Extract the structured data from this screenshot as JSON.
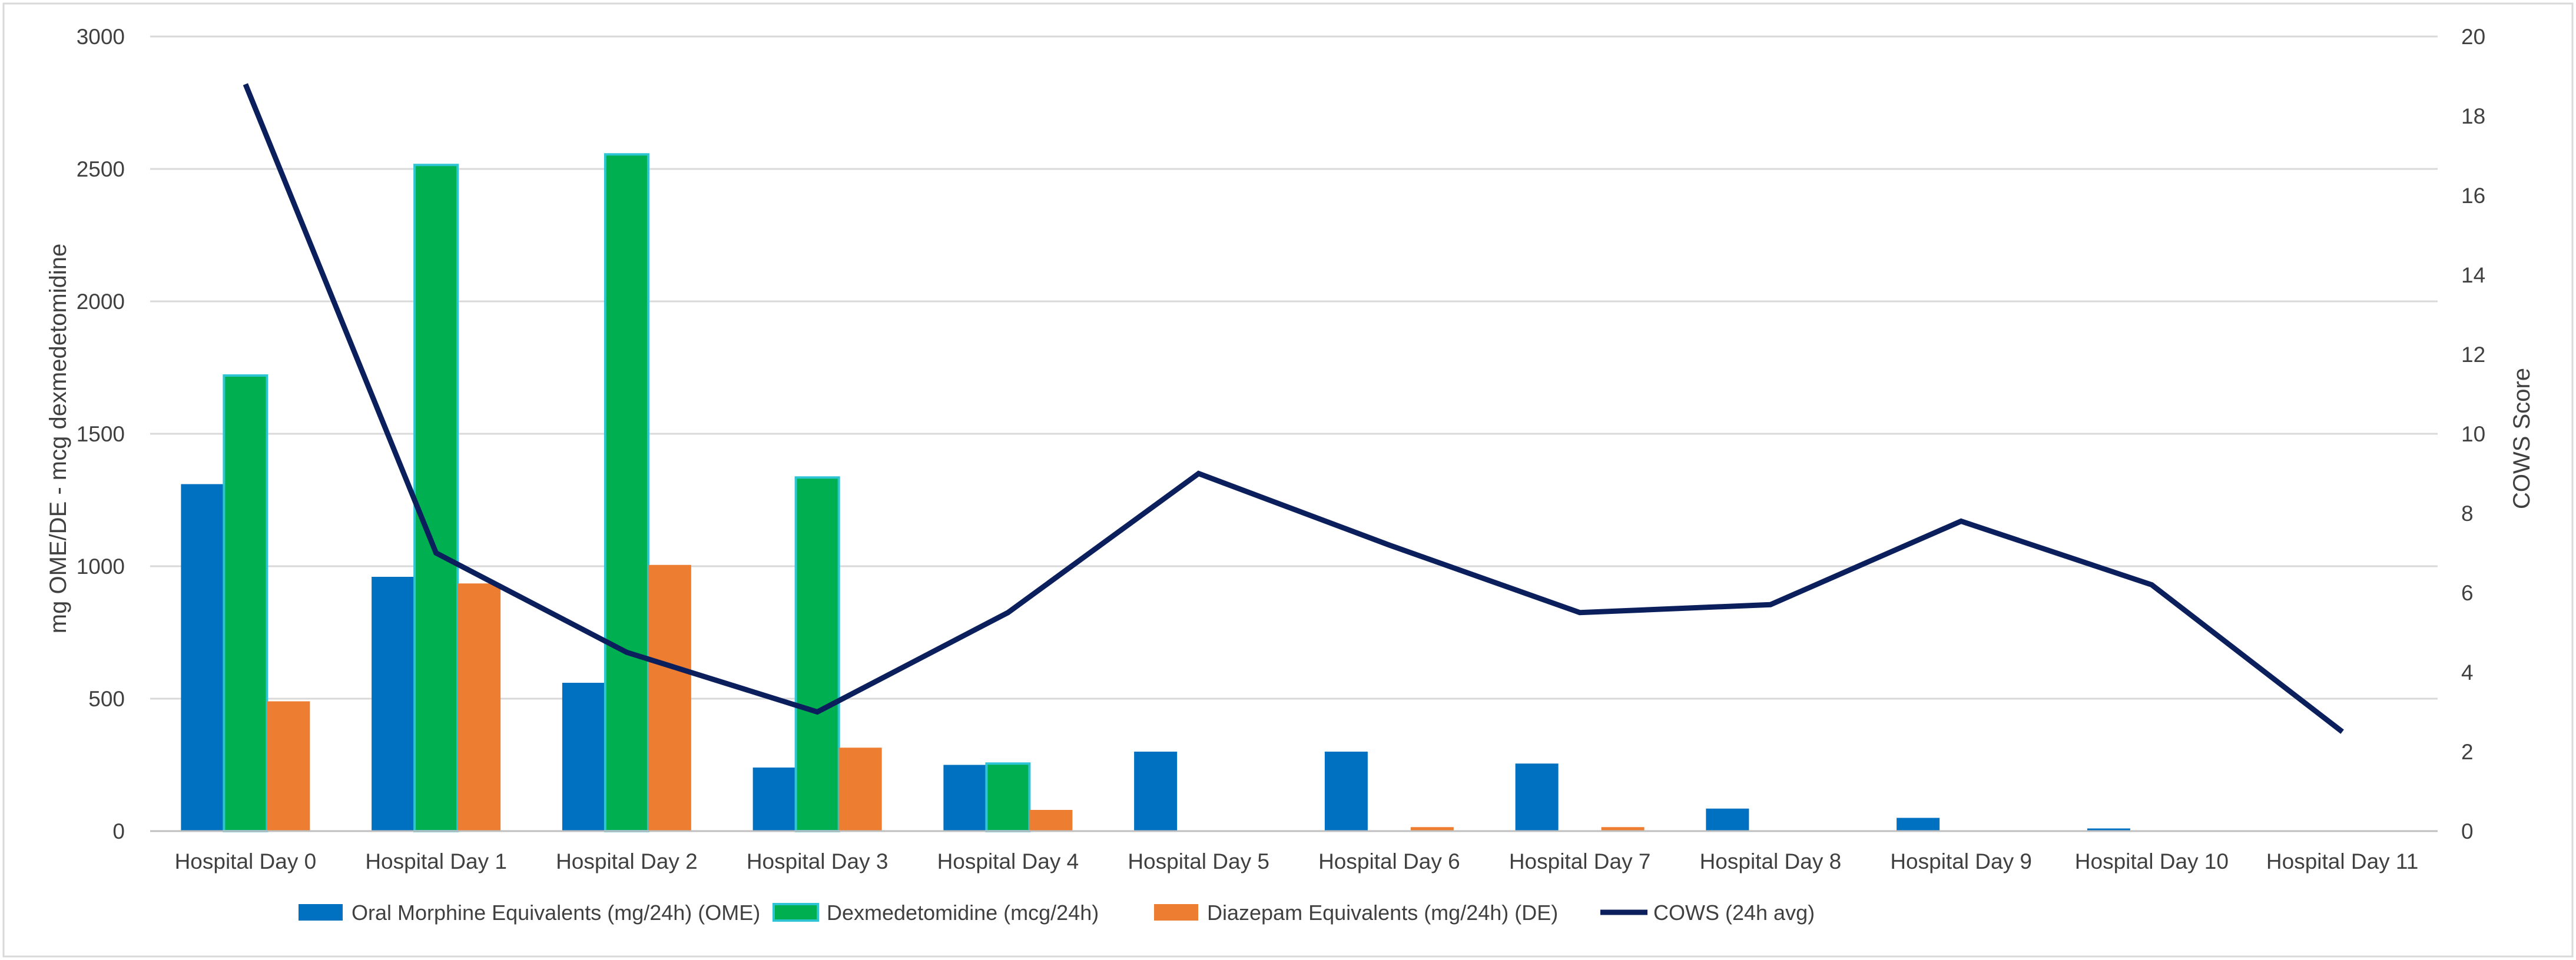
{
  "chart_data": {
    "type": "bar",
    "categories": [
      "Hospital Day 0",
      "Hospital Day 1",
      "Hospital Day 2",
      "Hospital Day 3",
      "Hospital Day 4",
      "Hospital Day 5",
      "Hospital Day 6",
      "Hospital Day 7",
      "Hospital Day 8",
      "Hospital Day 9",
      "Hospital Day 10",
      "Hospital Day 11"
    ],
    "series": [
      {
        "name": "Oral Morphine Equivalents (mg/24h) (OME)",
        "type": "bar",
        "axis": "left",
        "color": "#0070c0",
        "values": [
          1310,
          960,
          560,
          240,
          250,
          300,
          300,
          255,
          85,
          50,
          10,
          0
        ]
      },
      {
        "name": "Dexmedetomidine (mcg/24h)",
        "type": "bar",
        "axis": "left",
        "color": "#00b050",
        "edge_color": "#2fc4d4",
        "values": [
          1720,
          2515,
          2555,
          1335,
          255,
          0,
          0,
          0,
          0,
          0,
          0,
          0
        ]
      },
      {
        "name": "Diazepam Equivalents (mg/24h) (DE)",
        "type": "bar",
        "axis": "left",
        "color": "#ed7d31",
        "values": [
          490,
          935,
          1005,
          315,
          80,
          0,
          15,
          15,
          0,
          0,
          0,
          0
        ]
      },
      {
        "name": "COWS (24h avg)",
        "type": "line",
        "axis": "right",
        "color": "#0b1f5c",
        "values": [
          18.8,
          7.0,
          4.5,
          3.0,
          5.5,
          9.0,
          7.2,
          5.5,
          5.7,
          7.8,
          6.2,
          2.5
        ]
      }
    ],
    "ylabel": "mg OME/DE - mcg dexmedetomidine",
    "y2label": "COWS Score",
    "ylim": [
      0,
      3000
    ],
    "y2lim": [
      0,
      20
    ],
    "yticks": [
      "0",
      "500",
      "1000",
      "1500",
      "2000",
      "2500",
      "3000"
    ],
    "y2ticks": [
      "0",
      "2",
      "4",
      "6",
      "8",
      "10",
      "12",
      "14",
      "16",
      "18",
      "20"
    ],
    "grid": true,
    "legend": "bottom"
  }
}
